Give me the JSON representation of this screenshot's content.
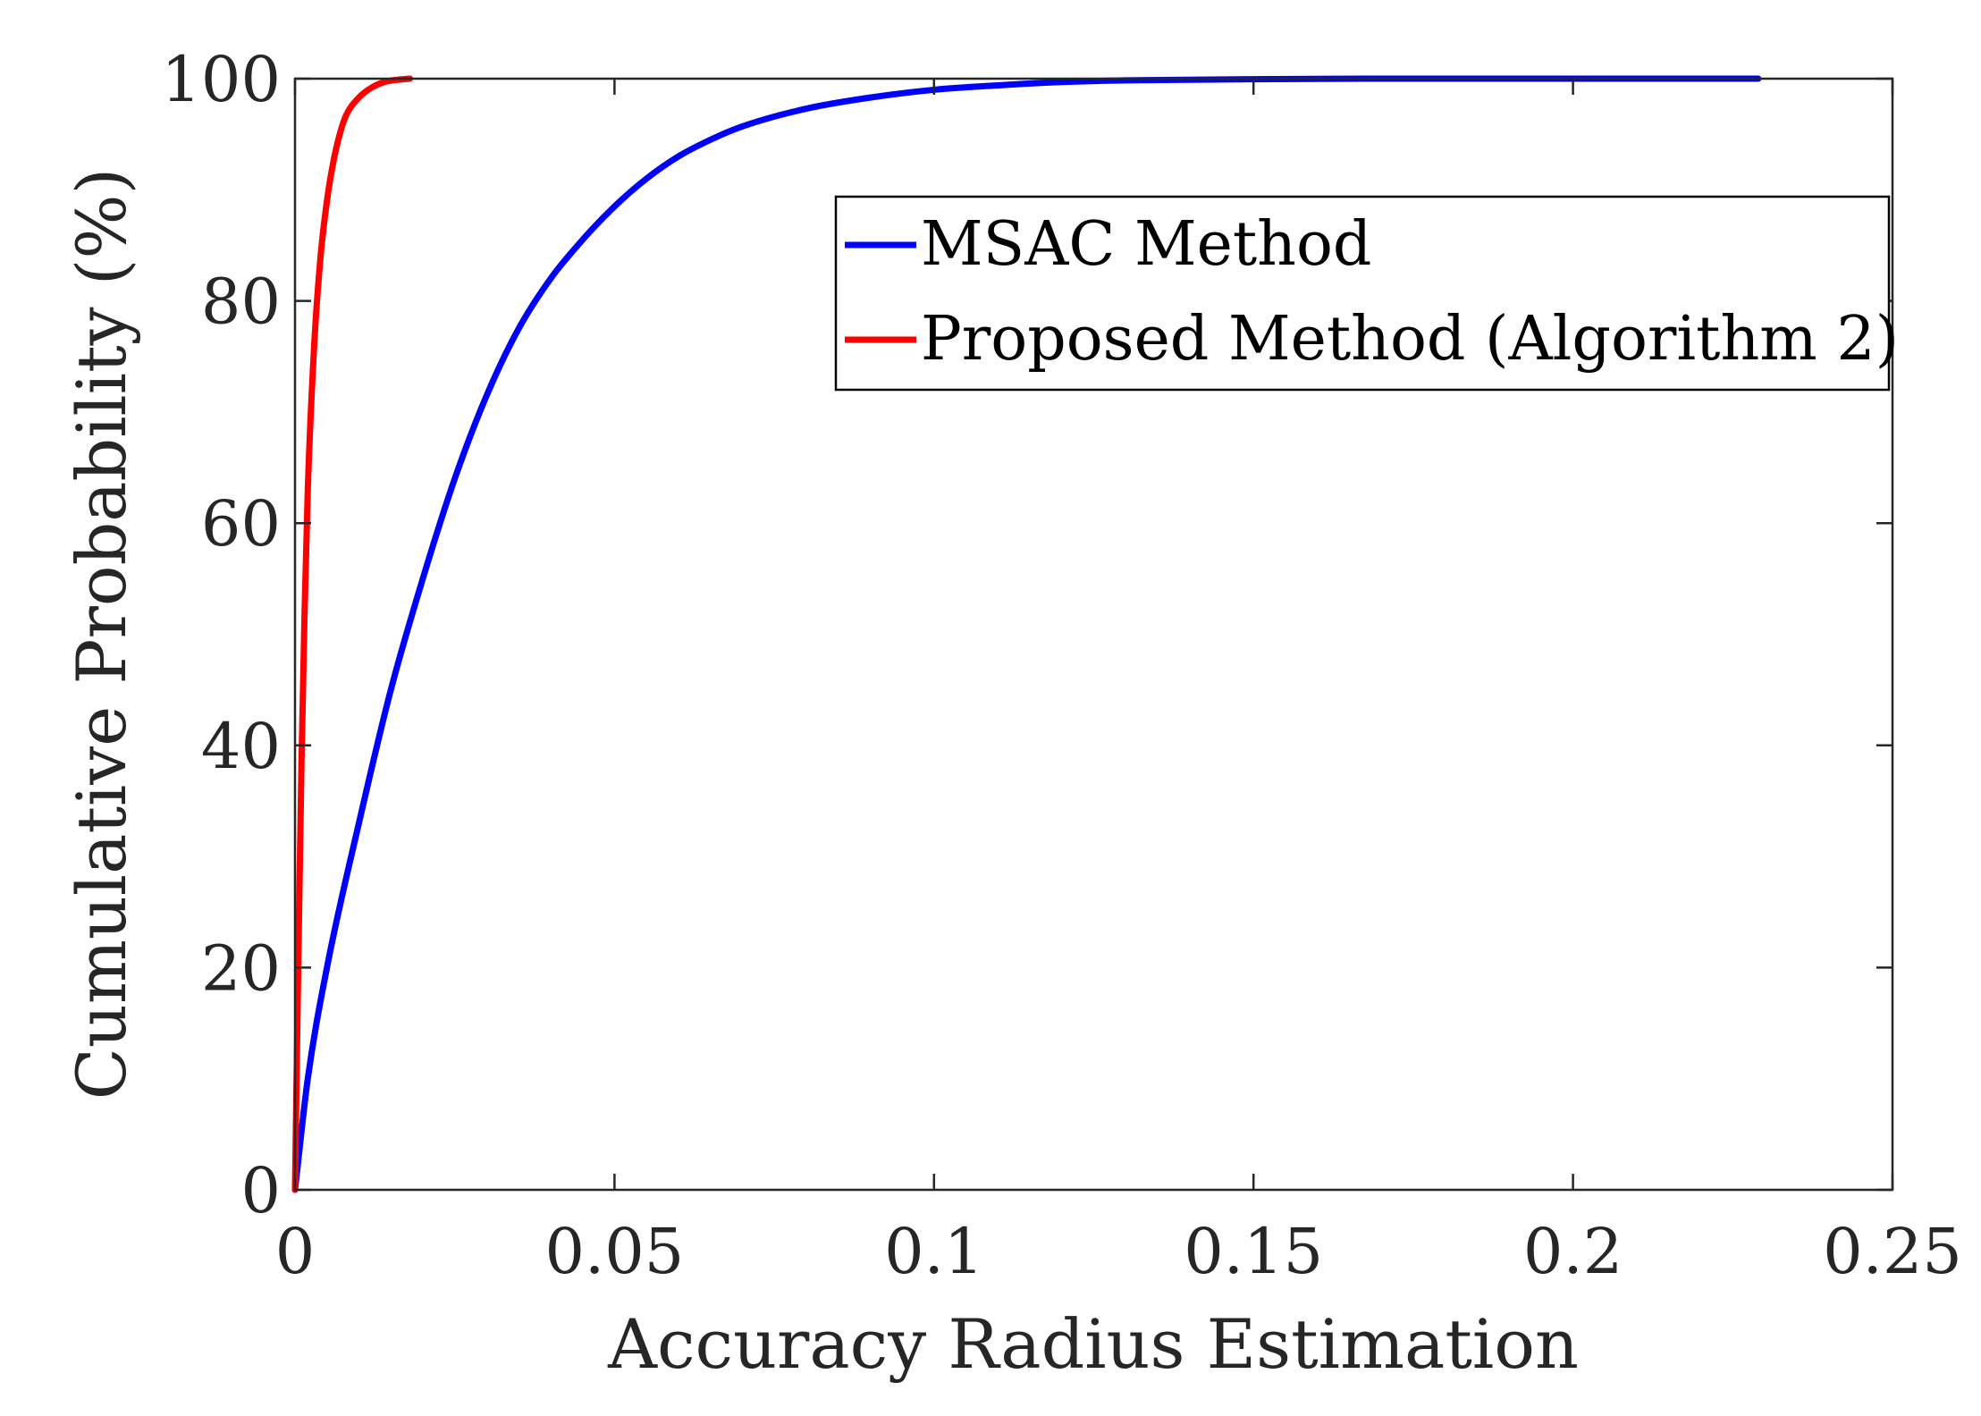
{
  "chart_data": {
    "type": "line",
    "title": "",
    "xlabel": "Accuracy Radius Estimation",
    "ylabel": "Cumulative Probability (%)",
    "xlim": [
      0,
      0.25
    ],
    "ylim": [
      0,
      100
    ],
    "xticks": [
      0,
      0.05,
      0.1,
      0.15,
      0.2,
      0.25
    ],
    "xtick_labels": [
      "0",
      "0.05",
      "0.1",
      "0.15",
      "0.2",
      "0.25"
    ],
    "yticks": [
      0,
      20,
      40,
      60,
      80,
      100
    ],
    "ytick_labels": [
      "0",
      "20",
      "40",
      "60",
      "80",
      "100"
    ],
    "grid": false,
    "legend_position": "top-right",
    "series": [
      {
        "name": "MSAC Method",
        "color": "#0000ff",
        "x": [
          0,
          0.002,
          0.005,
          0.01,
          0.015,
          0.02,
          0.025,
          0.03,
          0.035,
          0.04,
          0.045,
          0.05,
          0.055,
          0.06,
          0.065,
          0.07,
          0.08,
          0.09,
          0.1,
          0.11,
          0.12,
          0.13,
          0.15,
          0.17,
          0.2,
          0.229
        ],
        "y": [
          0,
          10,
          20,
          33,
          45,
          55,
          64,
          71.5,
          77.5,
          82,
          85.5,
          88.5,
          91,
          93,
          94.5,
          95.7,
          97.3,
          98.3,
          99,
          99.4,
          99.7,
          99.85,
          99.95,
          100,
          100,
          100
        ]
      },
      {
        "name": "Proposed Method (Algorithm 2)",
        "color": "#ff0000",
        "x": [
          0,
          0.0005,
          0.001,
          0.0015,
          0.002,
          0.003,
          0.004,
          0.005,
          0.006,
          0.007,
          0.008,
          0.01,
          0.012,
          0.014,
          0.016,
          0.018
        ],
        "y": [
          0,
          20,
          38,
          52,
          63,
          76,
          84,
          89,
          92.5,
          95,
          96.7,
          98.3,
          99.2,
          99.7,
          99.9,
          100
        ]
      }
    ]
  }
}
